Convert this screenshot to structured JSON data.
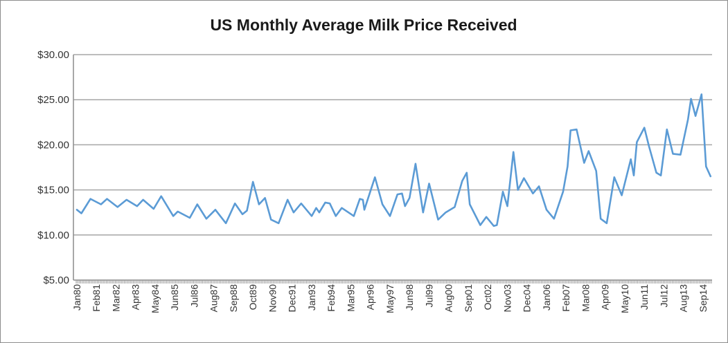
{
  "chart_data": {
    "type": "line",
    "title": "US Monthly Average Milk Price Received",
    "xlabel": "",
    "ylabel": "",
    "ylim": [
      5,
      30
    ],
    "y_ticks": [
      "$5.00",
      "$10.00",
      "$15.00",
      "$20.00",
      "$25.00",
      "$30.00"
    ],
    "x_tick_labels": [
      "Jan80",
      "Feb81",
      "Mar82",
      "Apr83",
      "May84",
      "Jun85",
      "Jul86",
      "Aug87",
      "Sep88",
      "Oct89",
      "Nov90",
      "Dec91",
      "Jan93",
      "Feb94",
      "Mar95",
      "Apr96",
      "May97",
      "Jun98",
      "Jul99",
      "Aug00",
      "Sep01",
      "Oct02",
      "Nov03",
      "Dec04",
      "Jan06",
      "Feb07",
      "Mar08",
      "Apr09",
      "May10",
      "Jun11",
      "Jul12",
      "Aug13",
      "Sep14"
    ],
    "x_range": [
      "1980-01",
      "2015-02"
    ],
    "grid": "horizontal",
    "legend": "none",
    "line_color": "#5b9bd5",
    "series": [
      {
        "points": [
          [
            "1980-01",
            12.8
          ],
          [
            "1980-04",
            12.4
          ],
          [
            "1980-10",
            14.0
          ],
          [
            "1981-05",
            13.4
          ],
          [
            "1981-09",
            14.0
          ],
          [
            "1982-04",
            13.1
          ],
          [
            "1982-10",
            13.9
          ],
          [
            "1983-05",
            13.2
          ],
          [
            "1983-09",
            13.9
          ],
          [
            "1984-04",
            12.9
          ],
          [
            "1984-09",
            14.3
          ],
          [
            "1985-05",
            12.1
          ],
          [
            "1985-08",
            12.6
          ],
          [
            "1986-04",
            11.9
          ],
          [
            "1986-09",
            13.4
          ],
          [
            "1987-03",
            11.8
          ],
          [
            "1987-09",
            12.8
          ],
          [
            "1988-04",
            11.3
          ],
          [
            "1988-10",
            13.5
          ],
          [
            "1989-03",
            12.3
          ],
          [
            "1989-06",
            12.7
          ],
          [
            "1989-10",
            15.9
          ],
          [
            "1990-02",
            13.4
          ],
          [
            "1990-06",
            14.1
          ],
          [
            "1990-10",
            11.7
          ],
          [
            "1991-03",
            11.3
          ],
          [
            "1991-09",
            13.9
          ],
          [
            "1992-01",
            12.5
          ],
          [
            "1992-06",
            13.5
          ],
          [
            "1993-01",
            12.1
          ],
          [
            "1993-04",
            13.0
          ],
          [
            "1993-06",
            12.5
          ],
          [
            "1993-10",
            13.6
          ],
          [
            "1994-01",
            13.5
          ],
          [
            "1994-05",
            12.1
          ],
          [
            "1994-09",
            13.0
          ],
          [
            "1995-05",
            12.1
          ],
          [
            "1995-09",
            14.0
          ],
          [
            "1995-11",
            13.9
          ],
          [
            "1995-12",
            12.8
          ],
          [
            "1996-07",
            16.4
          ],
          [
            "1996-12",
            13.4
          ],
          [
            "1997-05",
            12.1
          ],
          [
            "1997-10",
            14.5
          ],
          [
            "1998-01",
            14.6
          ],
          [
            "1998-03",
            13.2
          ],
          [
            "1998-06",
            14.1
          ],
          [
            "1998-10",
            17.9
          ],
          [
            "1999-03",
            12.5
          ],
          [
            "1999-07",
            15.7
          ],
          [
            "2000-01",
            11.7
          ],
          [
            "2000-06",
            12.5
          ],
          [
            "2000-12",
            13.1
          ],
          [
            "2001-05",
            16.0
          ],
          [
            "2001-08",
            16.9
          ],
          [
            "2001-10",
            13.4
          ],
          [
            "2002-05",
            11.1
          ],
          [
            "2002-09",
            12.0
          ],
          [
            "2003-02",
            11.0
          ],
          [
            "2003-04",
            11.1
          ],
          [
            "2003-08",
            14.8
          ],
          [
            "2003-11",
            13.2
          ],
          [
            "2004-03",
            19.2
          ],
          [
            "2004-06",
            15.0
          ],
          [
            "2004-10",
            16.3
          ],
          [
            "2005-04",
            14.6
          ],
          [
            "2005-08",
            15.4
          ],
          [
            "2006-01",
            12.8
          ],
          [
            "2006-06",
            11.8
          ],
          [
            "2006-12",
            14.8
          ],
          [
            "2007-03",
            17.6
          ],
          [
            "2007-05",
            21.6
          ],
          [
            "2007-09",
            21.7
          ],
          [
            "2008-02",
            18.0
          ],
          [
            "2008-05",
            19.3
          ],
          [
            "2008-10",
            17.1
          ],
          [
            "2009-01",
            11.8
          ],
          [
            "2009-05",
            11.3
          ],
          [
            "2009-10",
            16.4
          ],
          [
            "2010-03",
            14.4
          ],
          [
            "2010-09",
            18.4
          ],
          [
            "2010-11",
            16.6
          ],
          [
            "2011-01",
            20.3
          ],
          [
            "2011-06",
            21.9
          ],
          [
            "2011-09",
            19.9
          ],
          [
            "2012-02",
            16.9
          ],
          [
            "2012-05",
            16.6
          ],
          [
            "2012-09",
            21.7
          ],
          [
            "2013-01",
            19.0
          ],
          [
            "2013-06",
            18.9
          ],
          [
            "2013-11",
            22.8
          ],
          [
            "2014-01",
            25.1
          ],
          [
            "2014-04",
            23.2
          ],
          [
            "2014-08",
            25.6
          ],
          [
            "2014-11",
            17.6
          ],
          [
            "2015-02",
            16.5
          ]
        ]
      }
    ]
  }
}
